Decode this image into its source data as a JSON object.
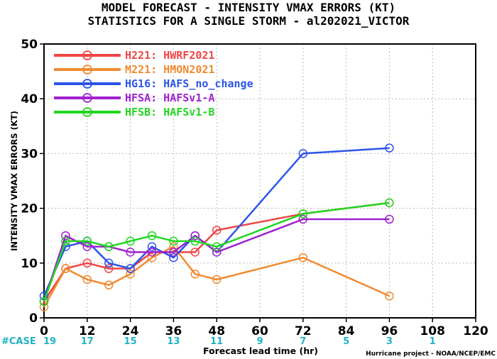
{
  "chart_data": {
    "type": "line",
    "title": "MODEL FORECAST - INTENSITY VMAX ERRORS (KT)",
    "subtitle": "STATISTICS FOR A SINGLE STORM - al202021_VICTOR",
    "ylabel": "INTENSITY VMAX ERRORS (KT)",
    "xlabel": "Forecast lead time (hr)",
    "xlim": [
      0,
      120
    ],
    "ylim": [
      0,
      50
    ],
    "xticks": [
      "0",
      "12",
      "24",
      "36",
      "48",
      "60",
      "72",
      "84",
      "96",
      "108",
      "120"
    ],
    "yticks": [
      "0",
      "10",
      "20",
      "30",
      "40",
      "50"
    ],
    "grid": true,
    "legend_position": "top-left",
    "series": [
      {
        "name": "H221: HWRF2021",
        "color": "#f04545",
        "x": [
          0,
          6,
          12,
          18,
          24,
          30,
          36,
          42,
          48,
          72,
          96
        ],
        "y": [
          3,
          9,
          10,
          9,
          9,
          12,
          12,
          12,
          16,
          19,
          21
        ]
      },
      {
        "name": "M221: HMON2021",
        "color": "#f08a30",
        "x": [
          0,
          6,
          12,
          18,
          24,
          30,
          36,
          42,
          48,
          72,
          96
        ],
        "y": [
          2,
          9,
          7,
          6,
          8,
          11,
          13,
          8,
          7,
          11,
          4
        ]
      },
      {
        "name": "HG16: HAFS_no_change",
        "color": "#2c55e8",
        "x": [
          0,
          6,
          12,
          18,
          24,
          30,
          36,
          42,
          48,
          72,
          96
        ],
        "y": [
          4,
          13,
          14,
          10,
          9,
          13,
          11,
          15,
          12,
          30,
          31
        ]
      },
      {
        "name": "HFSA: HAFSv1-A",
        "color": "#a020d0",
        "x": [
          0,
          6,
          12,
          18,
          24,
          30,
          36,
          42,
          48,
          72,
          96
        ],
        "y": [
          3,
          15,
          13,
          13,
          12,
          12,
          12,
          15,
          12,
          18,
          18
        ]
      },
      {
        "name": "HFSB: HAFSv1-B",
        "color": "#22d622",
        "x": [
          0,
          6,
          12,
          18,
          24,
          30,
          36,
          42,
          48,
          72,
          96
        ],
        "y": [
          3,
          14,
          14,
          13,
          14,
          15,
          14,
          14,
          13,
          19,
          21
        ]
      }
    ],
    "cases": {
      "label": "#CASE",
      "x": [
        0,
        12,
        24,
        36,
        48,
        60,
        72,
        84,
        96,
        108
      ],
      "values": [
        "19",
        "17",
        "15",
        "13",
        "11",
        "9",
        "7",
        "5",
        "3",
        "1"
      ]
    },
    "credit": "Hurricane project - NOAA/NCEP/EMC"
  }
}
